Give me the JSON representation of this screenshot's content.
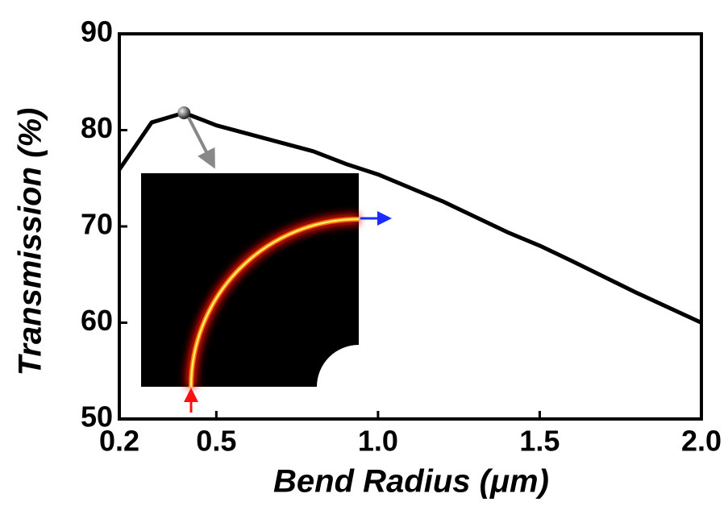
{
  "chart_data": {
    "type": "line",
    "xlabel": "Bend Radius (μm)",
    "ylabel": "Transmission (%)",
    "x": [
      0.2,
      0.3,
      0.4,
      0.5,
      0.6,
      0.7,
      0.8,
      0.9,
      1.0,
      1.2,
      1.4,
      1.5,
      1.6,
      1.8,
      2.0
    ],
    "series": [
      {
        "color": "#000000",
        "values": [
          75.9,
          80.8,
          81.8,
          80.5,
          79.6,
          78.7,
          77.8,
          76.5,
          75.4,
          72.6,
          69.4,
          68.0,
          66.4,
          63.1,
          60.0
        ]
      }
    ],
    "xlim": [
      0.2,
      2.0
    ],
    "xticks": [
      0.2,
      0.5,
      {
        "value": 1.0,
        "label": "1.0"
      },
      1.5,
      {
        "value": 2.0,
        "label": "2.0"
      }
    ],
    "ylim": [
      50,
      90
    ],
    "yticks": [
      50,
      60,
      70,
      80,
      90
    ],
    "grid": false
  }
}
